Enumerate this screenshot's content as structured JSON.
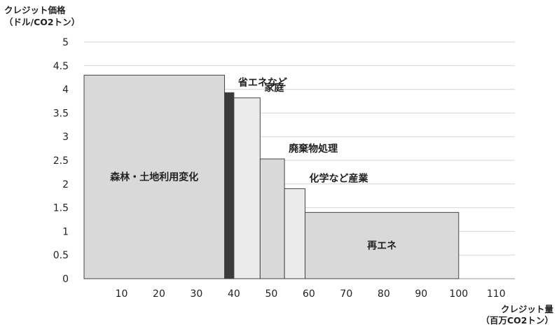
{
  "chart_data": {
    "type": "bar",
    "subtype": "variable-width step bar (marginal abatement cost curve)",
    "ylabel_lines": [
      "クレジット価格",
      "（ドル/CO2トン）"
    ],
    "xlabel_lines": [
      "クレジット量",
      "（百万CO2トン）"
    ],
    "xlim": [
      0,
      115
    ],
    "ylim": [
      0,
      5
    ],
    "x_ticks": [
      10,
      20,
      30,
      40,
      50,
      60,
      70,
      80,
      90,
      100,
      110
    ],
    "y_ticks": [
      0,
      0.5,
      1,
      1.5,
      2,
      2.5,
      3,
      3.5,
      4,
      4.5,
      5
    ],
    "y_tick_labels": [
      "0",
      "0.5",
      "1",
      "1.5",
      "2",
      "2.5",
      "3",
      "3.5",
      "4",
      "4.5",
      "5"
    ],
    "grid": "horizontal",
    "segments": [
      {
        "label": "森林・土地利用変化",
        "x_start": 0,
        "x_end": 37.5,
        "value": 4.3,
        "color": "#d9d9d9",
        "label_position": "inside"
      },
      {
        "label": "省エネなど",
        "x_start": 37.5,
        "x_end": 40,
        "value": 3.93,
        "color": "#3a3a3a",
        "label_position": "above"
      },
      {
        "label": "家庭",
        "x_start": 40,
        "x_end": 47,
        "value": 3.82,
        "color": "#ebebeb",
        "label_position": "above"
      },
      {
        "label": "廃棄物処理",
        "x_start": 47,
        "x_end": 53.5,
        "value": 2.53,
        "color": "#d9d9d9",
        "label_position": "above"
      },
      {
        "label": "",
        "x_start": 53.5,
        "x_end": 59,
        "value": 1.9,
        "color": "#ebebeb",
        "label_position": "none"
      },
      {
        "label": "化学など産業",
        "x_start": 53.5,
        "x_end": 59,
        "value": 1.9,
        "color": "#ebebeb",
        "label_position": "above"
      },
      {
        "label": "再エネ",
        "x_start": 59,
        "x_end": 100,
        "value": 1.4,
        "color": "#d9d9d9",
        "label_position": "inside"
      }
    ]
  }
}
